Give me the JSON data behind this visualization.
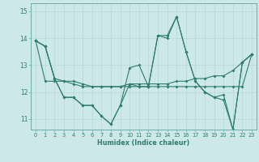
{
  "xlabel": "Humidex (Indice chaleur)",
  "xlim": [
    -0.5,
    23.5
  ],
  "ylim": [
    10.6,
    15.3
  ],
  "yticks": [
    11,
    12,
    13,
    14,
    15
  ],
  "xticks": [
    0,
    1,
    2,
    3,
    4,
    5,
    6,
    7,
    8,
    9,
    10,
    11,
    12,
    13,
    14,
    15,
    16,
    17,
    18,
    19,
    20,
    21,
    22,
    23
  ],
  "background_color": "#cce8e8",
  "grid_color": "#b8d8d8",
  "line_color": "#2e7d6e",
  "series": [
    [
      13.9,
      13.7,
      12.5,
      11.8,
      11.8,
      11.5,
      11.5,
      11.1,
      10.8,
      11.5,
      12.9,
      13.0,
      12.2,
      14.1,
      14.0,
      14.8,
      13.5,
      12.4,
      12.0,
      11.8,
      11.9,
      10.6,
      13.1,
      13.4
    ],
    [
      13.9,
      13.7,
      12.5,
      12.4,
      12.4,
      12.3,
      12.2,
      12.2,
      12.2,
      12.2,
      12.2,
      12.2,
      12.2,
      12.2,
      12.2,
      12.2,
      12.2,
      12.2,
      12.2,
      12.2,
      12.2,
      12.2,
      12.2,
      13.4
    ],
    [
      13.9,
      12.4,
      12.4,
      12.4,
      12.3,
      12.2,
      12.2,
      12.2,
      12.2,
      12.2,
      12.3,
      12.3,
      12.3,
      12.3,
      12.3,
      12.4,
      12.4,
      12.5,
      12.5,
      12.6,
      12.6,
      12.8,
      13.1,
      13.4
    ],
    [
      13.9,
      13.7,
      12.5,
      11.8,
      11.8,
      11.5,
      11.5,
      11.1,
      10.8,
      11.5,
      12.3,
      12.2,
      12.2,
      14.1,
      14.1,
      14.8,
      13.5,
      12.4,
      12.0,
      11.8,
      11.7,
      10.6,
      13.1,
      13.4
    ]
  ]
}
